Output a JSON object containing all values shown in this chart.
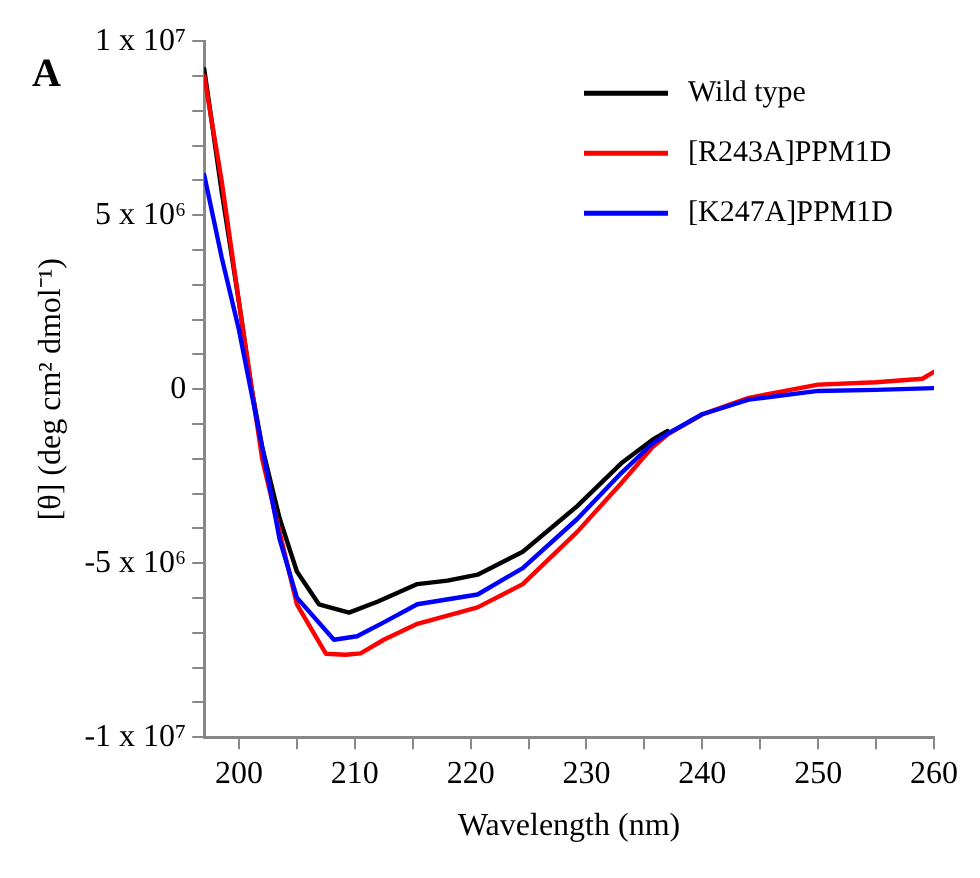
{
  "chart_data": {
    "type": "line",
    "title": "A",
    "xlabel": "Wavelength (nm)",
    "ylabel": "[θ] (deg cm² dmol⁻¹)",
    "xlim": [
      197,
      260
    ],
    "xticks": [
      200,
      {
        "value": 205,
        "label": null
      },
      210,
      {
        "value": 215,
        "label": null
      },
      220,
      {
        "value": 225,
        "label": null
      },
      230,
      {
        "value": 235,
        "label": null
      },
      240,
      {
        "value": 245,
        "label": null
      },
      250,
      {
        "value": 255,
        "label": null
      },
      260
    ],
    "ylim": [
      -10000000,
      10000000
    ],
    "yticks": [
      {
        "value": -10000000,
        "label": "-1 x 10⁷"
      },
      {
        "value": -9000000,
        "label": null
      },
      {
        "value": -8000000,
        "label": null
      },
      {
        "value": -7000000,
        "label": null
      },
      {
        "value": -6000000,
        "label": null
      },
      {
        "value": -5000000,
        "label": "-5 x 10⁶"
      },
      {
        "value": -4000000,
        "label": null
      },
      {
        "value": -3000000,
        "label": null
      },
      {
        "value": -2000000,
        "label": null
      },
      {
        "value": -1000000,
        "label": null
      },
      0,
      {
        "value": 1000000,
        "label": null
      },
      {
        "value": 2000000,
        "label": null
      },
      {
        "value": 3000000,
        "label": null
      },
      {
        "value": 4000000,
        "label": null
      },
      {
        "value": 5000000,
        "label": "5 x 10⁶"
      },
      {
        "value": 6000000,
        "label": null
      },
      {
        "value": 7000000,
        "label": null
      },
      {
        "value": 8000000,
        "label": null
      },
      {
        "value": 9000000,
        "label": null
      },
      {
        "value": 10000000,
        "label": "1 x 10⁷"
      }
    ],
    "grid": false,
    "legend": "top right",
    "marker": "none",
    "line_style": "solid",
    "series": [
      {
        "name": "Wild type",
        "color": "#000000",
        "x": [
          197,
          198.5,
          200,
          201.1,
          202,
          203.5,
          205,
          206.9,
          209.5,
          212,
          215.4,
          218,
          220.6,
          224.5,
          229.2,
          233,
          235.7,
          237
        ],
        "values": [
          9200000,
          5700000,
          2500000,
          0,
          -1660000,
          -3700000,
          -5240000,
          -6180000,
          -6420000,
          -6100000,
          -5600000,
          -5500000,
          -5330000,
          -4670000,
          -3360000,
          -2130000,
          -1450000,
          -1200000
        ]
      },
      {
        "name": "[R243A]PPM1D",
        "color": "#ff0000",
        "x": [
          197,
          198.5,
          200,
          202,
          203.5,
          205,
          207.5,
          209.2,
          210.5,
          212.5,
          215.4,
          220.6,
          224.5,
          229.2,
          233,
          235.7,
          237,
          240,
          244,
          250,
          255,
          259,
          260
        ],
        "values": [
          9000000,
          6000000,
          2500000,
          -2000000,
          -4100000,
          -6180000,
          -7600000,
          -7630000,
          -7590000,
          -7200000,
          -6740000,
          -6270000,
          -5600000,
          -4100000,
          -2700000,
          -1660000,
          -1300000,
          -720000,
          -250000,
          130000,
          200000,
          300000,
          500000
        ]
      },
      {
        "name": "[K247A]PPM1D",
        "color": "#0000ff",
        "x": [
          197,
          198.5,
          200,
          202,
          203.5,
          205,
          208.2,
          210.2,
          212.5,
          215.4,
          220.6,
          224.5,
          229.2,
          233,
          235.7,
          237,
          240,
          244,
          250,
          255,
          260
        ],
        "values": [
          6160000,
          3800000,
          1700000,
          -1660000,
          -4300000,
          -5990000,
          -7200000,
          -7100000,
          -6700000,
          -6180000,
          -5900000,
          -5140000,
          -3730000,
          -2410000,
          -1560000,
          -1280000,
          -720000,
          -300000,
          -50000,
          -20000,
          30000
        ]
      }
    ]
  }
}
